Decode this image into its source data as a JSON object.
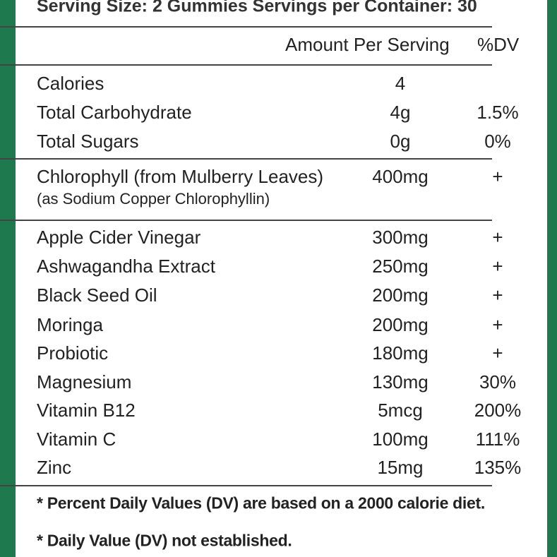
{
  "serving": "Serving Size: 2 Gummies Servings per Container: 30",
  "amount_header": "Amount Per Serving",
  "dv_header": "%DV",
  "sections": [
    [
      {
        "name": "Calories",
        "amount": "4"
      },
      {
        "name": "Total Carbohydrate",
        "amount": "4g",
        "dv": "1.5%"
      },
      {
        "name": "Total Sugars",
        "amount": "0g",
        "dv": "0%"
      }
    ],
    [
      {
        "name": "Chlorophyll (from Mulberry Leaves)",
        "note": "(as Sodium Copper Chlorophyllin)",
        "amount": "400mg",
        "dv": "+"
      }
    ],
    [
      {
        "name": "Apple Cider Vinegar",
        "amount": "300mg",
        "dv": "+"
      },
      {
        "name": "Ashwagandha Extract",
        "amount": "250mg",
        "dv": "+"
      },
      {
        "name": "Black Seed Oil",
        "amount": "200mg",
        "dv": "+"
      },
      {
        "name": "Moringa",
        "amount": "200mg",
        "dv": "+"
      },
      {
        "name": "Probiotic",
        "amount": "180mg",
        "dv": "+"
      },
      {
        "name": "Magnesium",
        "amount": "130mg",
        "dv": "30%"
      },
      {
        "name": "Vitamin B12",
        "amount": "5mcg",
        "dv": "200%"
      },
      {
        "name": "Vitamin C",
        "amount": "100mg",
        "dv": "111%"
      },
      {
        "name": "Zinc",
        "amount": "15mg",
        "dv": "135%"
      }
    ]
  ],
  "footnotes": [
    "* Percent Daily Values (DV) are based on a 2000 calorie diet.",
    "* Daily Value (DV) not established."
  ]
}
